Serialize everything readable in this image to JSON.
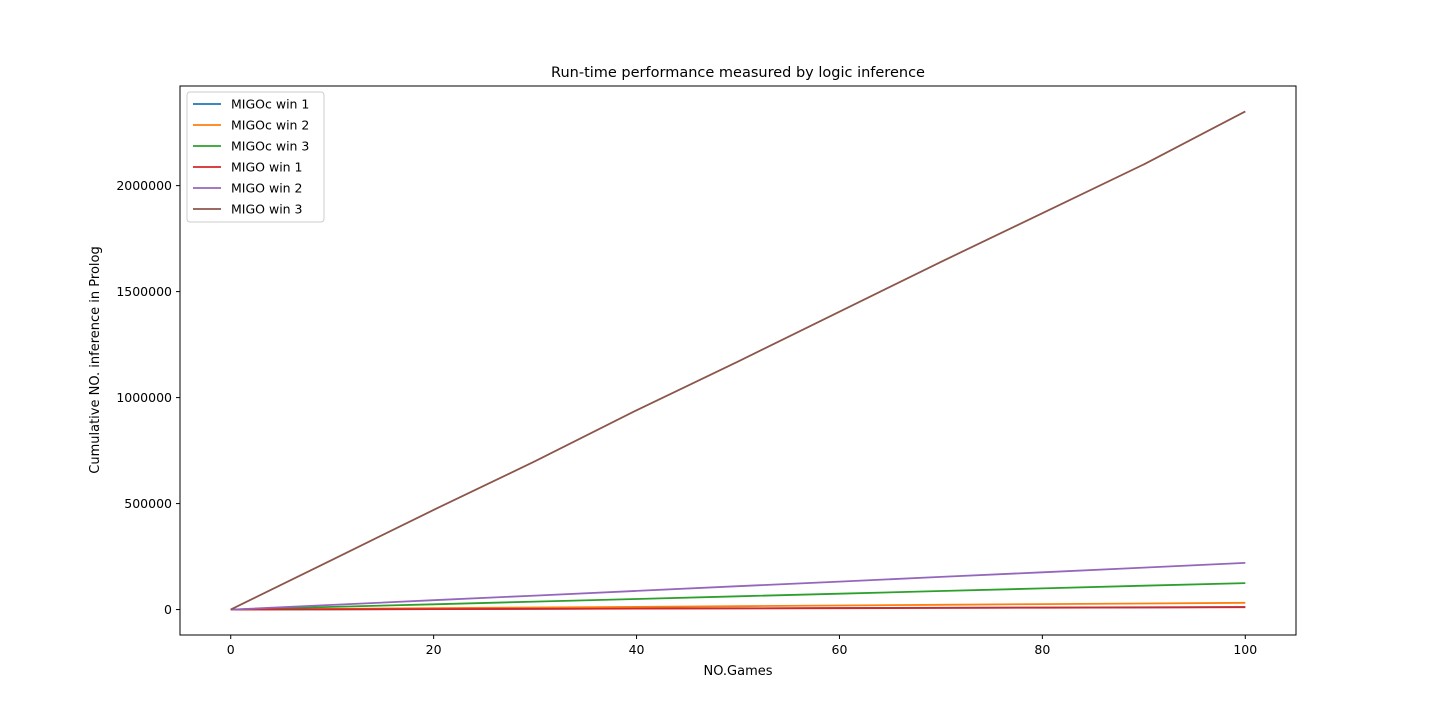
{
  "chart_data": {
    "type": "line",
    "title": "Run-time performance measured by logic inference",
    "xlabel": "NO.Games",
    "ylabel": "Cumulative NO. inference in Prolog",
    "xlim": [
      -5,
      105
    ],
    "ylim": [
      -120000,
      2470000
    ],
    "x_ticks": [
      0,
      20,
      40,
      60,
      80,
      100
    ],
    "y_ticks": [
      0,
      500000,
      1000000,
      1500000,
      2000000
    ],
    "grid": false,
    "legend_position": "top-left",
    "x": [
      0,
      10,
      20,
      30,
      40,
      50,
      60,
      70,
      80,
      90,
      100
    ],
    "series": [
      {
        "name": "MIGOc win 1",
        "color": "#1f77b4",
        "values": [
          0,
          1200,
          2400,
          3600,
          4800,
          6000,
          7200,
          8400,
          9600,
          10800,
          12000
        ]
      },
      {
        "name": "MIGOc win 2",
        "color": "#ff7f0e",
        "values": [
          0,
          3200,
          6400,
          9600,
          12800,
          16000,
          19200,
          22400,
          25600,
          28800,
          32000
        ]
      },
      {
        "name": "MIGOc win 3",
        "color": "#2ca02c",
        "values": [
          0,
          12500,
          25000,
          37500,
          50000,
          62500,
          75000,
          87500,
          100000,
          112500,
          125000
        ]
      },
      {
        "name": "MIGO win 1",
        "color": "#d62728",
        "values": [
          0,
          1100,
          2200,
          3300,
          4400,
          5500,
          6600,
          7700,
          8800,
          9900,
          11000
        ]
      },
      {
        "name": "MIGO win 2",
        "color": "#9467bd",
        "values": [
          0,
          22000,
          44000,
          66000,
          88000,
          110000,
          132000,
          154000,
          176000,
          198000,
          220000
        ]
      },
      {
        "name": "MIGO win 3",
        "color": "#8c564b",
        "values": [
          0,
          235000,
          470000,
          700000,
          940000,
          1170000,
          1405000,
          1640000,
          1870000,
          2100000,
          2350000
        ]
      }
    ]
  }
}
